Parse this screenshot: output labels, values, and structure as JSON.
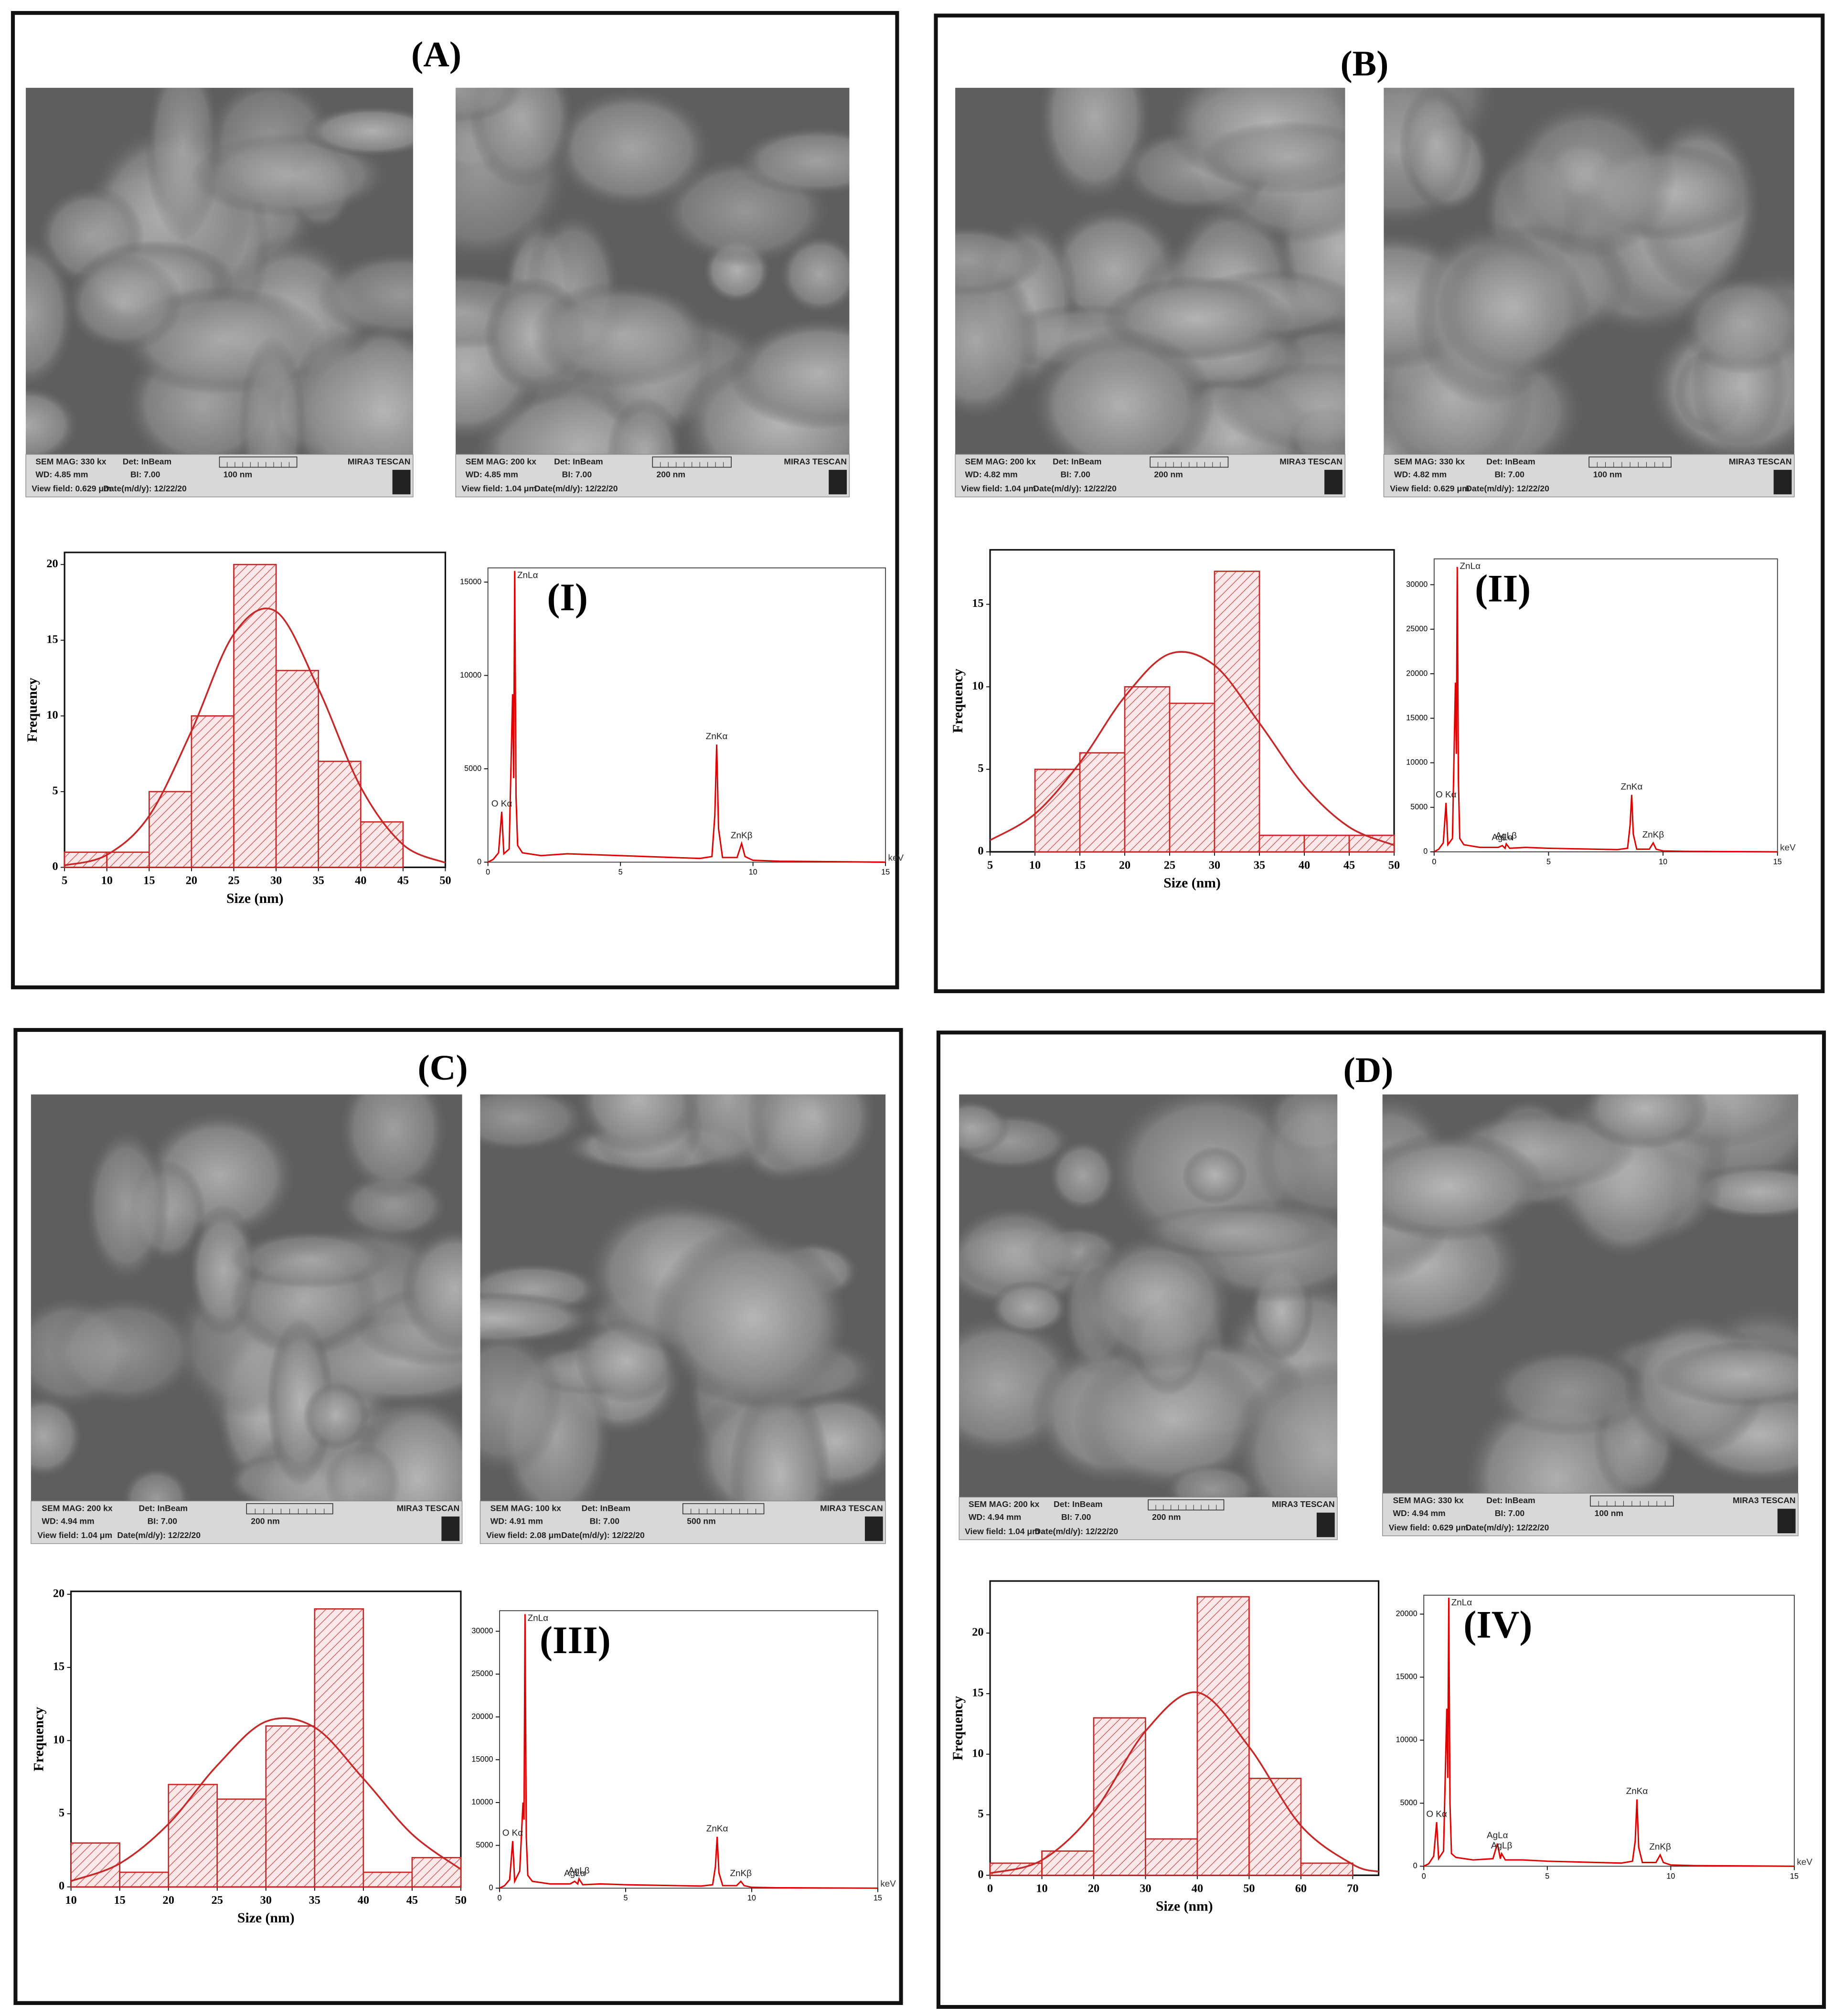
{
  "panels": [
    {
      "label": "(A)",
      "sem": [
        {
          "mag": "SEM MAG: 330 kx",
          "det": "Det: InBeam",
          "scale": "100 nm",
          "brand": "MIRA3 TESCAN",
          "wd": "WD: 4.85 mm",
          "bi": "BI: 7.00",
          "view": "View field: 0.629 μm",
          "date": "Date(m/d/y): 12/22/20"
        },
        {
          "mag": "SEM MAG: 200 kx",
          "det": "Det: InBeam",
          "scale": "200 nm",
          "brand": "MIRA3 TESCAN",
          "wd": "WD: 4.85 mm",
          "bi": "BI: 7.00",
          "view": "View field: 1.04 μm",
          "date": "Date(m/d/y): 12/22/20"
        }
      ]
    },
    {
      "label": "(B)",
      "sem": [
        {
          "mag": "SEM MAG: 200 kx",
          "det": "Det: InBeam",
          "scale": "200 nm",
          "brand": "MIRA3 TESCAN",
          "wd": "WD: 4.82 mm",
          "bi": "BI: 7.00",
          "view": "View field: 1.04 μm",
          "date": "Date(m/d/y): 12/22/20"
        },
        {
          "mag": "SEM MAG: 330 kx",
          "det": "Det: InBeam",
          "scale": "100 nm",
          "brand": "MIRA3 TESCAN",
          "wd": "WD: 4.82 mm",
          "bi": "BI: 7.00",
          "view": "View field: 0.629 μm",
          "date": "Date(m/d/y): 12/22/20"
        }
      ]
    },
    {
      "label": "(C)",
      "sem": [
        {
          "mag": "SEM MAG: 200 kx",
          "det": "Det: InBeam",
          "scale": "200 nm",
          "brand": "MIRA3 TESCAN",
          "wd": "WD: 4.94 mm",
          "bi": "BI: 7.00",
          "view": "View field: 1.04 μm",
          "date": "Date(m/d/y): 12/22/20"
        },
        {
          "mag": "SEM MAG: 100 kx",
          "det": "Det: InBeam",
          "scale": "500 nm",
          "brand": "MIRA3 TESCAN",
          "wd": "WD: 4.91 mm",
          "bi": "BI: 7.00",
          "view": "View field: 2.08 μm",
          "date": "Date(m/d/y): 12/22/20"
        }
      ]
    },
    {
      "label": "(D)",
      "sem": [
        {
          "mag": "SEM MAG: 200 kx",
          "det": "Det: InBeam",
          "scale": "200 nm",
          "brand": "MIRA3 TESCAN",
          "wd": "WD: 4.94 mm",
          "bi": "BI: 7.00",
          "view": "View field: 1.04 μm",
          "date": "Date(m/d/y): 12/22/20"
        },
        {
          "mag": "SEM MAG: 330 kx",
          "det": "Det: InBeam",
          "scale": "100 nm",
          "brand": "MIRA3 TESCAN",
          "wd": "WD: 4.94 mm",
          "bi": "BI: 7.00",
          "view": "View field: 0.629 μm",
          "date": "Date(m/d/y): 12/22/20"
        }
      ]
    }
  ],
  "chart_data": [
    {
      "type": "histogram",
      "xlabel": "Size (nm)",
      "ylabel": "Frequency",
      "color": "#c62828",
      "bins": [
        5,
        10,
        15,
        20,
        25,
        30,
        35,
        40,
        45
      ],
      "values": [
        1,
        1,
        5,
        10,
        20,
        13,
        7,
        3
      ],
      "curve": {
        "x": [
          5,
          10,
          15,
          20,
          25,
          30,
          35,
          40,
          45,
          50
        ],
        "values": [
          0.13,
          0.82,
          3.4,
          9.0,
          15.4,
          16.9,
          11.8,
          5.3,
          1.5,
          0.3
        ]
      },
      "xlim": [
        5,
        50
      ],
      "xticks": [
        5,
        10,
        15,
        20,
        25,
        30,
        35,
        40,
        45,
        50
      ],
      "ylim": [
        0,
        20.8
      ],
      "yticks": [
        0,
        5,
        10,
        15,
        20
      ]
    },
    {
      "type": "line",
      "title": "(I)",
      "xlabel": "keV",
      "color": "#e00000",
      "x": [
        0,
        0.2,
        0.4,
        0.52,
        0.6,
        0.8,
        0.93,
        0.97,
        1.01,
        1.06,
        1.12,
        1.3,
        2,
        3,
        4,
        5,
        6,
        7,
        8,
        8.45,
        8.56,
        8.63,
        8.7,
        8.85,
        9.4,
        9.57,
        9.7,
        10,
        11,
        15
      ],
      "values": [
        0,
        150,
        500,
        2700,
        450,
        700,
        9000,
        4500,
        15600,
        3500,
        900,
        500,
        350,
        450,
        400,
        350,
        300,
        250,
        200,
        300,
        2500,
        6300,
        1800,
        250,
        250,
        1000,
        300,
        100,
        50,
        0
      ],
      "annotations": [
        {
          "text": "ZnLα",
          "x": 1.01,
          "y": 15600
        },
        {
          "text": "O Kα",
          "x": 0.52,
          "y": 2700
        },
        {
          "text": "ZnKα",
          "x": 8.63,
          "y": 6300
        },
        {
          "text": "ZnKβ",
          "x": 9.57,
          "y": 1000
        }
      ],
      "xlim": [
        0,
        15
      ],
      "xticks": [
        0,
        5,
        10,
        15
      ],
      "ylim": [
        0,
        15760
      ],
      "yticks": [
        0,
        5000,
        10000,
        15000
      ]
    },
    {
      "type": "histogram",
      "xlabel": "Size (nm)",
      "ylabel": "Frequency",
      "color": "#c62828",
      "bins": [
        10,
        15,
        20,
        25,
        30,
        35,
        40,
        45,
        50
      ],
      "values": [
        5,
        6,
        10,
        9,
        17,
        1,
        1,
        1
      ],
      "curve": {
        "x": [
          5,
          10,
          15,
          20,
          25,
          30,
          35,
          40,
          45,
          50
        ],
        "values": [
          0.7,
          2.3,
          5.4,
          9.4,
          12.0,
          11.3,
          7.8,
          4.0,
          1.5,
          0.4
        ]
      },
      "xlim": [
        5,
        50
      ],
      "xticks": [
        5,
        10,
        15,
        20,
        25,
        30,
        35,
        40,
        45,
        50
      ],
      "ylim": [
        0,
        18.3
      ],
      "yticks": [
        0,
        5,
        10,
        15
      ]
    },
    {
      "type": "line",
      "title": "(II)",
      "xlabel": "keV",
      "color": "#e00000",
      "x": [
        0,
        0.2,
        0.4,
        0.52,
        0.6,
        0.8,
        0.93,
        0.97,
        1.01,
        1.06,
        1.12,
        1.3,
        2,
        2.8,
        2.98,
        3.1,
        3.15,
        3.3,
        4,
        5,
        6,
        7,
        8,
        8.45,
        8.56,
        8.63,
        8.7,
        8.85,
        9.4,
        9.57,
        9.7,
        10,
        11,
        15
      ],
      "values": [
        0,
        300,
        1000,
        5500,
        800,
        1500,
        19000,
        11000,
        32000,
        8000,
        1500,
        800,
        500,
        500,
        700,
        400,
        900,
        400,
        500,
        400,
        350,
        300,
        250,
        400,
        3000,
        6400,
        2000,
        300,
        300,
        1000,
        300,
        100,
        50,
        0
      ],
      "annotations": [
        {
          "text": "ZnLα",
          "x": 1.01,
          "y": 32000
        },
        {
          "text": "O Kα",
          "x": 0.52,
          "y": 5500
        },
        {
          "text": "AgLα",
          "x": 2.98,
          "y": 700
        },
        {
          "text": "AgLβ",
          "x": 3.15,
          "y": 900
        },
        {
          "text": "ZnKα",
          "x": 8.63,
          "y": 6400
        },
        {
          "text": "ZnKβ",
          "x": 9.57,
          "y": 1000
        }
      ],
      "xlim": [
        0,
        15
      ],
      "xticks": [
        0,
        5,
        10,
        15
      ],
      "ylim": [
        0,
        32900
      ],
      "yticks": [
        0,
        5000,
        10000,
        15000,
        20000,
        25000,
        30000
      ]
    },
    {
      "type": "histogram",
      "xlabel": "Size (nm)",
      "ylabel": "Frequency",
      "color": "#c62828",
      "bins": [
        10,
        15,
        20,
        25,
        30,
        35,
        40,
        45,
        50
      ],
      "values": [
        3,
        1,
        7,
        6,
        11,
        19,
        1,
        2
      ],
      "curve": {
        "x": [
          10,
          15,
          20,
          25,
          30,
          35,
          40,
          45,
          50
        ],
        "values": [
          0.4,
          1.6,
          4.3,
          8.3,
          11.3,
          10.9,
          7.4,
          3.6,
          1.2
        ]
      },
      "xlim": [
        10,
        50
      ],
      "xticks": [
        10,
        15,
        20,
        25,
        30,
        35,
        40,
        45,
        50
      ],
      "ylim": [
        0,
        20.2
      ],
      "yticks": [
        0,
        5,
        10,
        15,
        20
      ]
    },
    {
      "type": "line",
      "title": "(III)",
      "xlabel": "keV",
      "color": "#e00000",
      "x": [
        0,
        0.2,
        0.4,
        0.52,
        0.6,
        0.8,
        0.93,
        0.97,
        1.01,
        1.06,
        1.12,
        1.3,
        2,
        2.8,
        2.98,
        3.1,
        3.15,
        3.3,
        4,
        5,
        6,
        7,
        8,
        8.45,
        8.56,
        8.63,
        8.7,
        8.85,
        9.4,
        9.57,
        9.7,
        10,
        11,
        15
      ],
      "values": [
        0,
        300,
        1000,
        5500,
        800,
        2000,
        10000,
        8000,
        32000,
        6000,
        1500,
        800,
        500,
        500,
        800,
        500,
        1100,
        400,
        500,
        400,
        350,
        300,
        250,
        400,
        2500,
        6000,
        1800,
        300,
        300,
        800,
        300,
        100,
        50,
        0
      ],
      "annotations": [
        {
          "text": "ZnLα",
          "x": 1.01,
          "y": 32000
        },
        {
          "text": "O Kα",
          "x": 0.52,
          "y": 5500
        },
        {
          "text": "AgLα",
          "x": 2.98,
          "y": 800
        },
        {
          "text": "AgLβ",
          "x": 3.15,
          "y": 1100
        },
        {
          "text": "ZnKα",
          "x": 8.63,
          "y": 6000
        },
        {
          "text": "ZnKβ",
          "x": 9.57,
          "y": 800
        }
      ],
      "xlim": [
        0,
        15
      ],
      "xticks": [
        0,
        5,
        10,
        15
      ],
      "ylim": [
        0,
        32400
      ],
      "yticks": [
        0,
        5000,
        10000,
        15000,
        20000,
        25000,
        30000
      ]
    },
    {
      "type": "histogram",
      "xlabel": "Size (nm)",
      "ylabel": "Frequency",
      "color": "#c62828",
      "bins": [
        0,
        10,
        20,
        30,
        40,
        50,
        60,
        70
      ],
      "values": [
        1,
        2,
        13,
        3,
        23,
        8,
        1
      ],
      "curve": {
        "x": [
          0,
          10,
          20,
          30,
          40,
          50,
          60,
          70,
          75
        ],
        "values": [
          0.17,
          1.25,
          5.2,
          11.9,
          15.1,
          10.6,
          4.1,
          0.9,
          0.3
        ]
      },
      "xlim": [
        0,
        75
      ],
      "xticks": [
        0,
        10,
        20,
        30,
        40,
        50,
        60,
        70
      ],
      "ylim": [
        0,
        24.3
      ],
      "yticks": [
        0,
        5,
        10,
        15,
        20
      ]
    },
    {
      "type": "line",
      "title": "(IV)",
      "xlabel": "keV",
      "color": "#e00000",
      "x": [
        0,
        0.2,
        0.4,
        0.52,
        0.6,
        0.8,
        0.93,
        0.97,
        1.01,
        1.06,
        1.12,
        1.3,
        2,
        2.8,
        2.98,
        3.1,
        3.15,
        3.3,
        4,
        5,
        6,
        7,
        8,
        8.45,
        8.56,
        8.63,
        8.7,
        8.85,
        9.4,
        9.57,
        9.7,
        10,
        11,
        15
      ],
      "values": [
        0,
        200,
        800,
        3500,
        600,
        1200,
        12500,
        7000,
        21300,
        5000,
        1000,
        700,
        500,
        600,
        1800,
        600,
        1000,
        500,
        500,
        400,
        350,
        300,
        250,
        400,
        2000,
        5300,
        1500,
        300,
        300,
        900,
        300,
        100,
        50,
        0
      ],
      "annotations": [
        {
          "text": "ZnLα",
          "x": 1.01,
          "y": 21300
        },
        {
          "text": "O Kα",
          "x": 0.52,
          "y": 3500
        },
        {
          "text": "AgLα",
          "x": 2.98,
          "y": 1800
        },
        {
          "text": "AgLβ",
          "x": 3.15,
          "y": 1000
        },
        {
          "text": "ZnKα",
          "x": 8.63,
          "y": 5300
        },
        {
          "text": "ZnKβ",
          "x": 9.57,
          "y": 900
        }
      ],
      "xlim": [
        0,
        15
      ],
      "xticks": [
        0,
        5,
        10,
        15
      ],
      "ylim": [
        0,
        21500
      ],
      "yticks": [
        0,
        5000,
        10000,
        15000,
        20000
      ]
    }
  ]
}
